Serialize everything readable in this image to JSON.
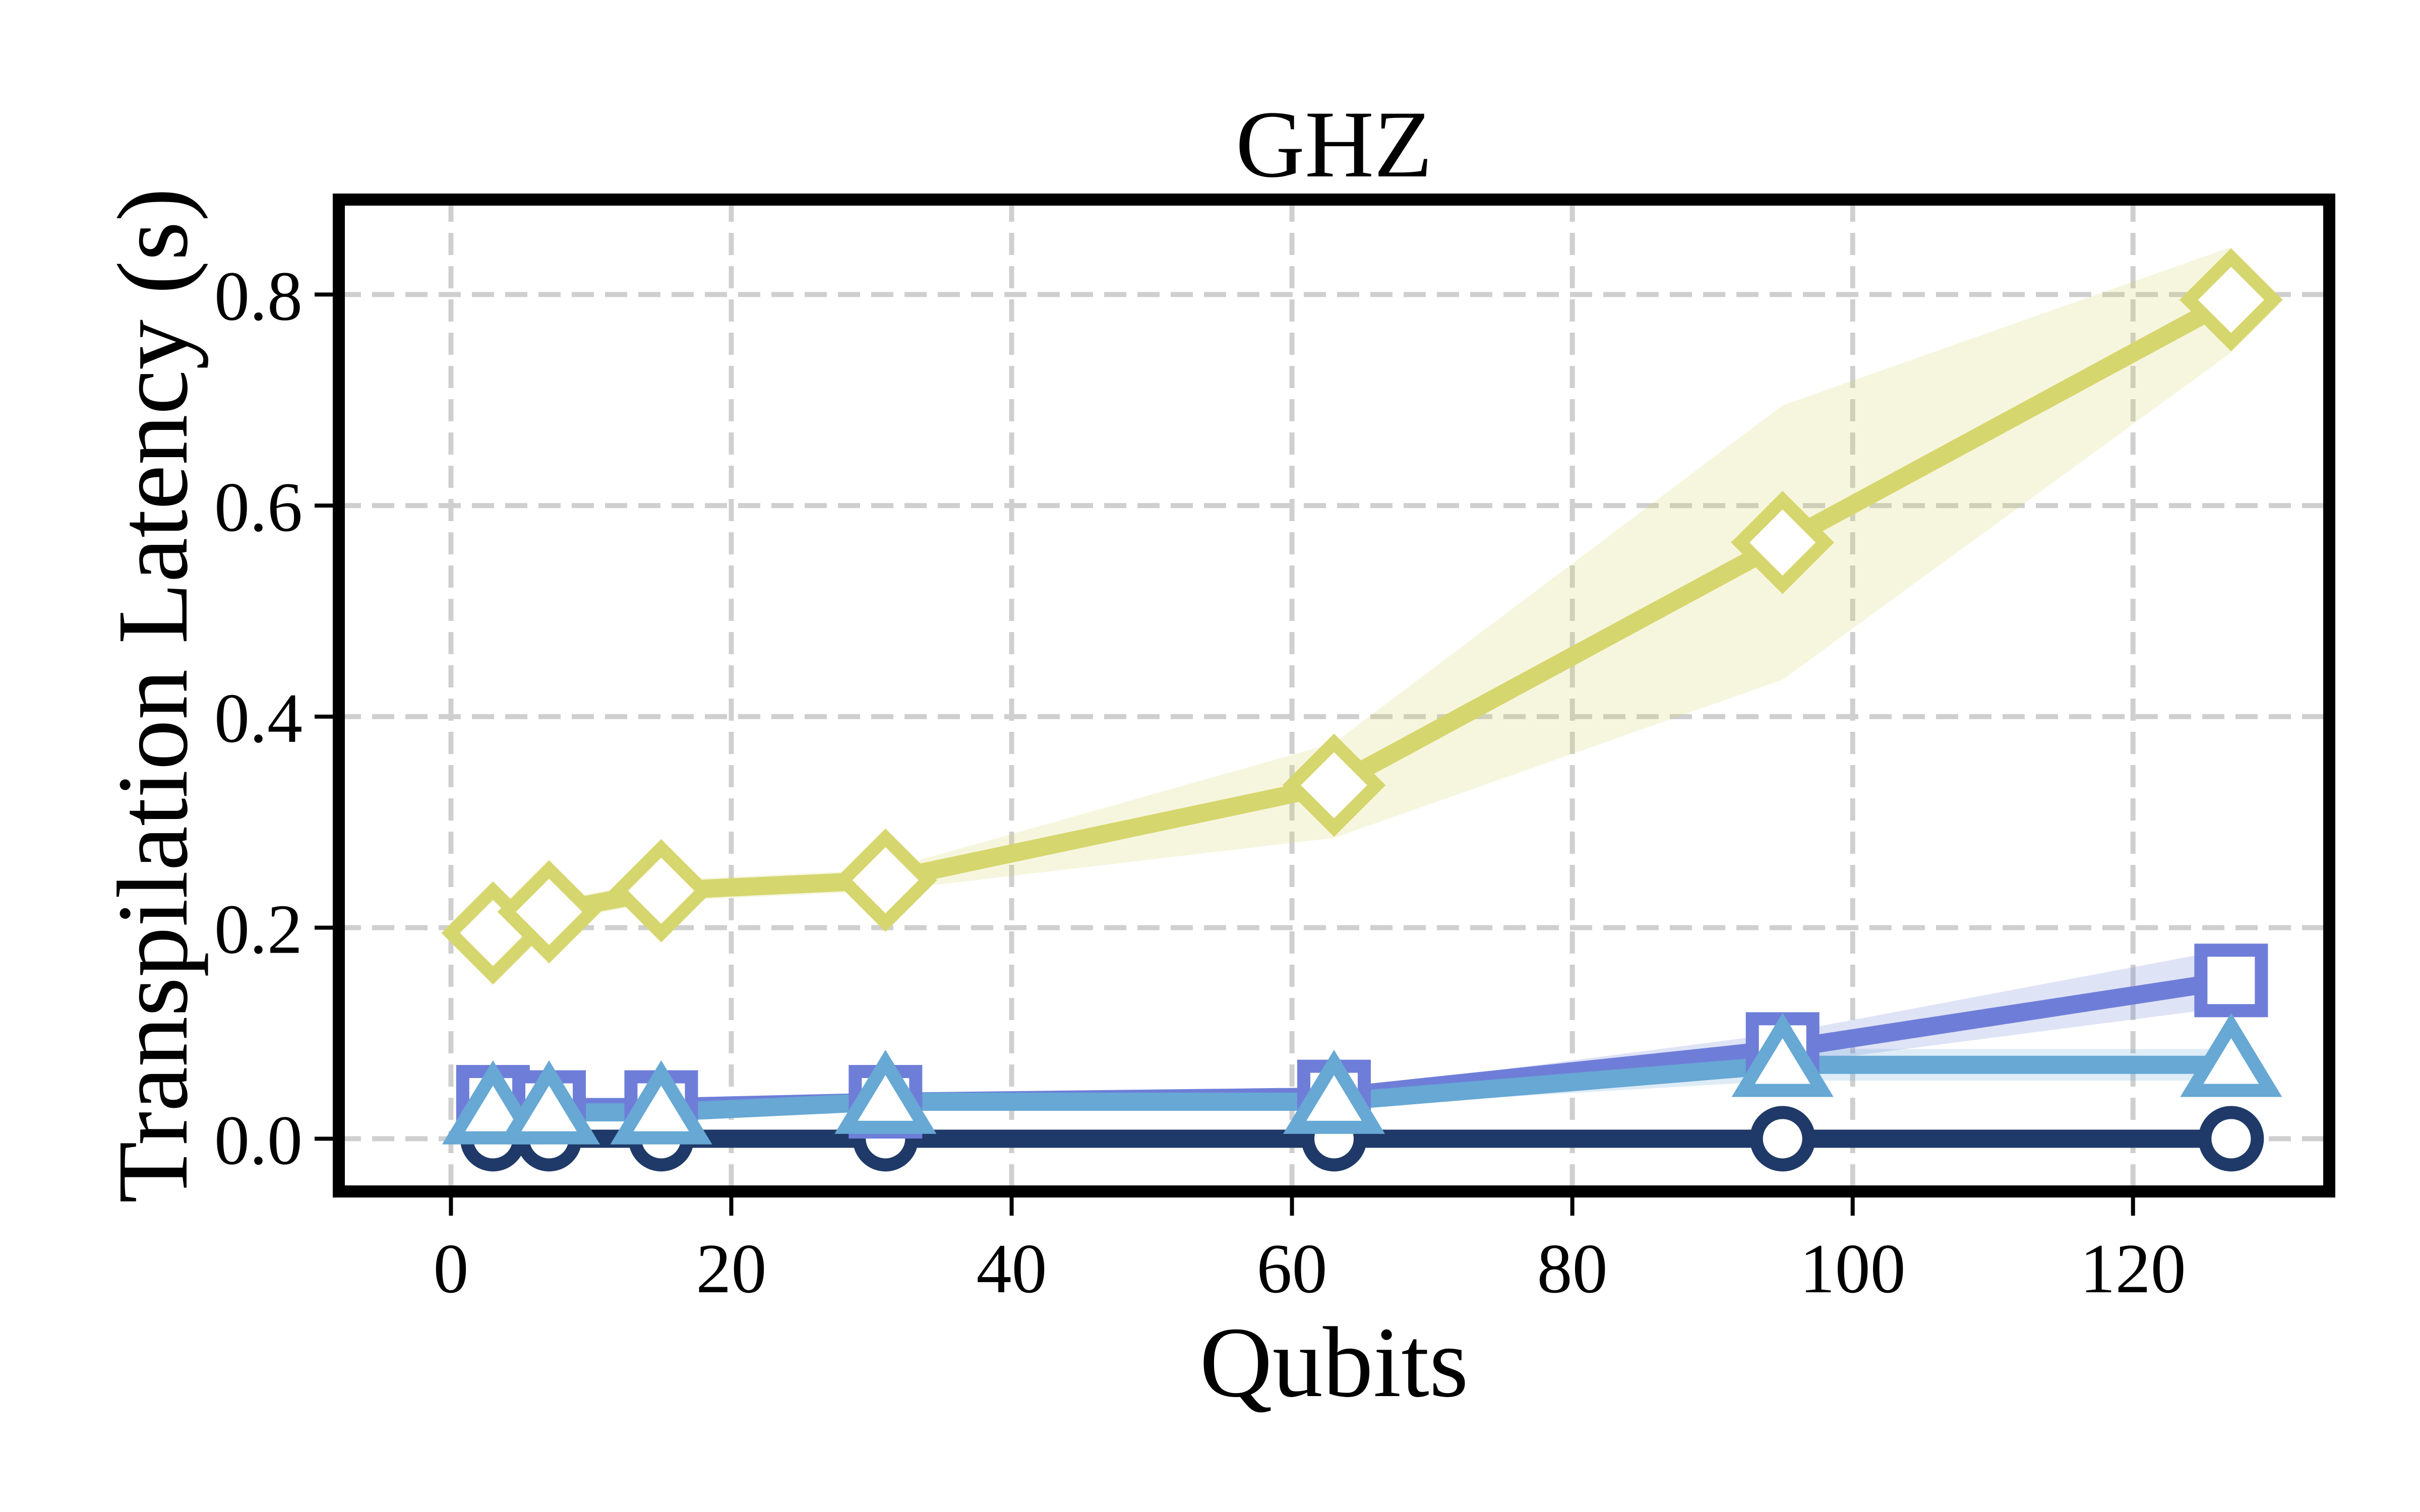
{
  "chart_data": {
    "type": "line",
    "title": "GHZ",
    "xlabel": "Qubits",
    "ylabel": "Transpilation Latency (s)",
    "xlim": [
      -8,
      134
    ],
    "ylim": [
      -0.05,
      0.89
    ],
    "xticks": [
      0,
      20,
      40,
      60,
      80,
      100,
      120
    ],
    "yticks": [
      0.0,
      0.2,
      0.4,
      0.6,
      0.8
    ],
    "xtick_labels": [
      "0",
      "20",
      "40",
      "60",
      "80",
      "100",
      "120"
    ],
    "ytick_labels": [
      "0.0",
      "0.2",
      "0.4",
      "0.6",
      "0.8"
    ],
    "grid": true,
    "x": [
      3,
      7,
      15,
      31,
      63,
      95,
      127
    ],
    "series": [
      {
        "marker": "diamond",
        "color": "#d6d66e",
        "values": [
          0.195,
          0.215,
          0.235,
          0.245,
          0.335,
          0.565,
          0.795
        ],
        "lower": [
          0.185,
          0.205,
          0.225,
          0.235,
          0.285,
          0.435,
          0.745
        ],
        "upper": [
          0.205,
          0.225,
          0.245,
          0.255,
          0.375,
          0.695,
          0.845
        ]
      },
      {
        "marker": "square",
        "color": "#6e7ed8",
        "values": [
          0.035,
          0.03,
          0.03,
          0.035,
          0.04,
          0.085,
          0.15
        ],
        "lower": [
          0.03,
          0.025,
          0.025,
          0.03,
          0.035,
          0.07,
          0.125
        ],
        "upper": [
          0.04,
          0.035,
          0.035,
          0.04,
          0.045,
          0.1,
          0.18
        ]
      },
      {
        "marker": "triangle",
        "color": "#67a8d4",
        "values": [
          0.025,
          0.025,
          0.025,
          0.035,
          0.035,
          0.07,
          0.07
        ],
        "lower": [
          0.02,
          0.02,
          0.02,
          0.03,
          0.03,
          0.055,
          0.055
        ],
        "upper": [
          0.03,
          0.03,
          0.03,
          0.04,
          0.04,
          0.085,
          0.085
        ]
      },
      {
        "marker": "circle",
        "color": "#1f3a68",
        "values": [
          0.0,
          0.0,
          0.0,
          0.0,
          0.0,
          0.0,
          0.0
        ],
        "lower": [
          0.0,
          0.0,
          0.0,
          0.0,
          0.0,
          0.0,
          0.0
        ],
        "upper": [
          0.0,
          0.0,
          0.0,
          0.0,
          0.0,
          0.0,
          0.0
        ]
      }
    ]
  }
}
